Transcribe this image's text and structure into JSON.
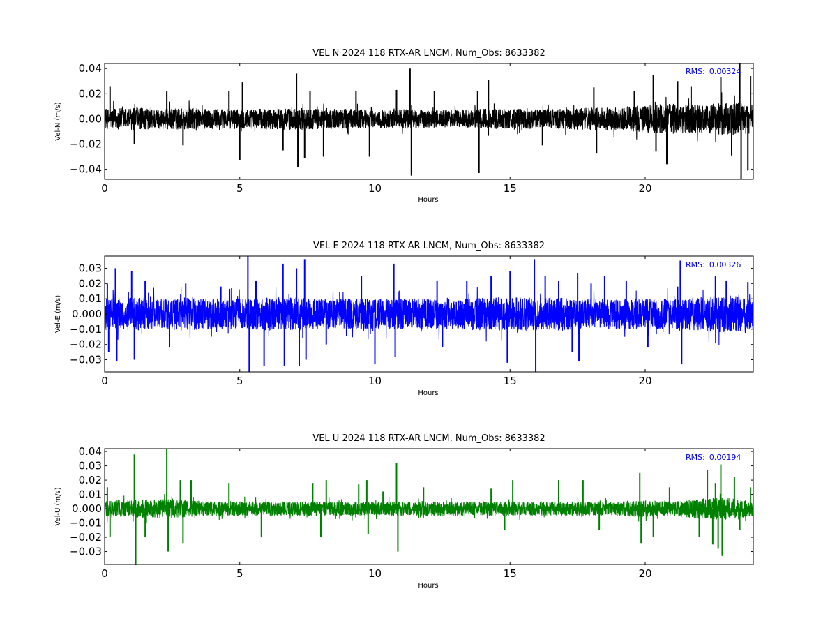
{
  "chart_data": [
    {
      "type": "line",
      "title": "VEL N 2024 118 RTX-AR  LNCM, Num_Obs: 8633382",
      "xlabel": "Hours",
      "ylabel": "Vel-N (m/s)",
      "xlim": [
        0,
        24
      ],
      "ylim": [
        -0.048,
        0.044
      ],
      "xticks": [
        0,
        5,
        10,
        15,
        20
      ],
      "xtick_labels": [
        "0",
        "5",
        "10",
        "15",
        "20"
      ],
      "yticks": [
        -0.04,
        -0.02,
        0.0,
        0.02,
        0.04
      ],
      "ytick_labels": [
        "−0.04",
        "−0.02",
        "0.00",
        "0.02",
        "0.04"
      ],
      "color": "#000000",
      "grid": false,
      "annotation": {
        "label": "RMS:",
        "value": "0.00324",
        "color": "#0000ff",
        "placement": "top-right"
      },
      "series": [
        {
          "noise_envelope": [
            [
              0,
              0.008
            ],
            [
              1,
              0.009
            ],
            [
              2,
              0.008
            ],
            [
              3,
              0.009
            ],
            [
              4,
              0.008
            ],
            [
              5,
              0.008
            ],
            [
              6,
              0.008
            ],
            [
              7,
              0.009
            ],
            [
              8,
              0.008
            ],
            [
              9,
              0.008
            ],
            [
              10,
              0.007
            ],
            [
              11,
              0.008
            ],
            [
              12,
              0.007
            ],
            [
              13,
              0.007
            ],
            [
              14,
              0.008
            ],
            [
              15,
              0.008
            ],
            [
              16,
              0.008
            ],
            [
              17,
              0.008
            ],
            [
              18,
              0.009
            ],
            [
              19,
              0.009
            ],
            [
              20,
              0.011
            ],
            [
              21,
              0.012
            ],
            [
              22,
              0.011
            ],
            [
              23,
              0.013
            ],
            [
              24,
              0.012
            ]
          ],
          "spikes": [
            [
              0.2,
              0.026
            ],
            [
              1.1,
              -0.02
            ],
            [
              2.3,
              0.022
            ],
            [
              2.9,
              -0.021
            ],
            [
              4.6,
              0.022
            ],
            [
              5.0,
              -0.033
            ],
            [
              5.1,
              0.029
            ],
            [
              6.6,
              -0.025
            ],
            [
              7.1,
              0.036
            ],
            [
              7.15,
              -0.038
            ],
            [
              7.4,
              -0.031
            ],
            [
              7.6,
              0.022
            ],
            [
              8.1,
              -0.03
            ],
            [
              9.3,
              0.022
            ],
            [
              9.8,
              -0.03
            ],
            [
              10.8,
              0.023
            ],
            [
              11.3,
              0.04
            ],
            [
              11.35,
              -0.045
            ],
            [
              12.2,
              0.022
            ],
            [
              13.8,
              0.022
            ],
            [
              13.85,
              -0.043
            ],
            [
              14.2,
              0.031
            ],
            [
              16.2,
              -0.021
            ],
            [
              18.1,
              0.025
            ],
            [
              18.2,
              -0.027
            ],
            [
              19.6,
              0.022
            ],
            [
              20.3,
              0.035
            ],
            [
              20.4,
              -0.026
            ],
            [
              20.8,
              -0.036
            ],
            [
              21.2,
              0.03
            ],
            [
              21.7,
              0.026
            ],
            [
              22.8,
              0.033
            ],
            [
              23.2,
              -0.029
            ],
            [
              23.5,
              0.044
            ],
            [
              23.55,
              -0.048
            ],
            [
              23.8,
              -0.041
            ],
            [
              23.9,
              0.034
            ]
          ]
        }
      ]
    },
    {
      "type": "line",
      "title": "VEL E 2024 118 RTX-AR  LNCM, Num_Obs: 8633382",
      "xlabel": "Hours",
      "ylabel": "Vel-E (m/s)",
      "xlim": [
        0,
        24
      ],
      "ylim": [
        -0.038,
        0.038
      ],
      "xticks": [
        0,
        5,
        10,
        15,
        20
      ],
      "xtick_labels": [
        "0",
        "5",
        "10",
        "15",
        "20"
      ],
      "yticks": [
        -0.03,
        -0.02,
        -0.01,
        0.0,
        0.01,
        0.02,
        0.03
      ],
      "ytick_labels": [
        "−0.03",
        "−0.02",
        "−0.01",
        "0.000",
        "0.01",
        "0.02",
        "0.03"
      ],
      "color": "#0000ff",
      "grid": false,
      "annotation": {
        "label": "RMS:",
        "value": "0.00326",
        "color": "#0000ff",
        "placement": "top-right"
      },
      "series": [
        {
          "noise_envelope": [
            [
              0,
              0.01
            ],
            [
              1,
              0.011
            ],
            [
              2,
              0.01
            ],
            [
              3,
              0.011
            ],
            [
              4,
              0.01
            ],
            [
              5,
              0.01
            ],
            [
              6,
              0.011
            ],
            [
              7,
              0.011
            ],
            [
              8,
              0.01
            ],
            [
              9,
              0.01
            ],
            [
              10,
              0.01
            ],
            [
              11,
              0.01
            ],
            [
              12,
              0.01
            ],
            [
              13,
              0.01
            ],
            [
              14,
              0.011
            ],
            [
              15,
              0.011
            ],
            [
              16,
              0.011
            ],
            [
              17,
              0.011
            ],
            [
              18,
              0.01
            ],
            [
              19,
              0.01
            ],
            [
              20,
              0.01
            ],
            [
              21,
              0.01
            ],
            [
              22,
              0.011
            ],
            [
              23,
              0.013
            ],
            [
              24,
              0.01
            ]
          ],
          "spikes": [
            [
              0.1,
              0.02
            ],
            [
              0.15,
              -0.025
            ],
            [
              0.4,
              0.03
            ],
            [
              0.45,
              -0.031
            ],
            [
              1.0,
              0.028
            ],
            [
              1.1,
              -0.03
            ],
            [
              1.5,
              0.022
            ],
            [
              2.4,
              -0.022
            ],
            [
              3.0,
              0.02
            ],
            [
              4.3,
              0.018
            ],
            [
              5.3,
              0.038
            ],
            [
              5.35,
              -0.038
            ],
            [
              5.6,
              0.022
            ],
            [
              5.9,
              -0.034
            ],
            [
              6.6,
              0.033
            ],
            [
              6.65,
              -0.034
            ],
            [
              7.1,
              0.03
            ],
            [
              7.2,
              -0.034
            ],
            [
              7.4,
              0.036
            ],
            [
              7.45,
              -0.03
            ],
            [
              8.2,
              -0.02
            ],
            [
              9.5,
              0.025
            ],
            [
              10.0,
              -0.033
            ],
            [
              10.7,
              0.033
            ],
            [
              10.75,
              -0.028
            ],
            [
              12.3,
              0.022
            ],
            [
              12.5,
              -0.022
            ],
            [
              13.4,
              0.022
            ],
            [
              14.3,
              0.025
            ],
            [
              14.9,
              -0.032
            ],
            [
              15.0,
              0.028
            ],
            [
              15.9,
              0.036
            ],
            [
              15.95,
              -0.038
            ],
            [
              16.3,
              0.025
            ],
            [
              16.8,
              0.022
            ],
            [
              17.3,
              -0.025
            ],
            [
              17.5,
              0.027
            ],
            [
              17.55,
              -0.031
            ],
            [
              18.0,
              0.02
            ],
            [
              18.5,
              0.025
            ],
            [
              19.3,
              0.022
            ],
            [
              20.1,
              -0.022
            ],
            [
              21.2,
              0.018
            ],
            [
              21.3,
              0.035
            ],
            [
              21.35,
              -0.033
            ],
            [
              22.6,
              0.025
            ],
            [
              23.0,
              0.022
            ],
            [
              23.8,
              0.021
            ]
          ]
        }
      ]
    },
    {
      "type": "line",
      "title": "VEL U 2024 118 RTX-AR  LNCM, Num_Obs: 8633382",
      "xlabel": "Hours",
      "ylabel": "Vel-U (m/s)",
      "xlim": [
        0,
        24
      ],
      "ylim": [
        -0.039,
        0.042
      ],
      "xticks": [
        0,
        5,
        10,
        15,
        20
      ],
      "xtick_labels": [
        "0",
        "5",
        "10",
        "15",
        "20"
      ],
      "yticks": [
        -0.03,
        -0.02,
        -0.01,
        0.0,
        0.01,
        0.02,
        0.03,
        0.04
      ],
      "ytick_labels": [
        "−0.03",
        "−0.02",
        "−0.01",
        "0.000",
        "0.01",
        "0.02",
        "0.03",
        "0.04"
      ],
      "color": "#008000",
      "grid": false,
      "annotation": {
        "label": "RMS:",
        "value": "0.00194",
        "color": "#0000ff",
        "placement": "top-right"
      },
      "series": [
        {
          "noise_envelope": [
            [
              0,
              0.006
            ],
            [
              1,
              0.006
            ],
            [
              2,
              0.007
            ],
            [
              3,
              0.006
            ],
            [
              4,
              0.005
            ],
            [
              5,
              0.005
            ],
            [
              6,
              0.005
            ],
            [
              7,
              0.005
            ],
            [
              8,
              0.005
            ],
            [
              9,
              0.005
            ],
            [
              10,
              0.005
            ],
            [
              11,
              0.005
            ],
            [
              12,
              0.005
            ],
            [
              13,
              0.005
            ],
            [
              14,
              0.005
            ],
            [
              15,
              0.005
            ],
            [
              16,
              0.005
            ],
            [
              17,
              0.005
            ],
            [
              18,
              0.005
            ],
            [
              19,
              0.005
            ],
            [
              20,
              0.006
            ],
            [
              21,
              0.005
            ],
            [
              22,
              0.007
            ],
            [
              23,
              0.008
            ],
            [
              24,
              0.005
            ]
          ],
          "spikes": [
            [
              0.1,
              0.015
            ],
            [
              0.2,
              -0.02
            ],
            [
              1.1,
              0.038
            ],
            [
              1.15,
              -0.039
            ],
            [
              1.5,
              -0.02
            ],
            [
              2.3,
              0.042
            ],
            [
              2.35,
              -0.03
            ],
            [
              2.8,
              0.02
            ],
            [
              2.9,
              -0.024
            ],
            [
              3.2,
              0.02
            ],
            [
              4.6,
              0.018
            ],
            [
              5.8,
              -0.02
            ],
            [
              7.7,
              0.018
            ],
            [
              8.0,
              -0.02
            ],
            [
              8.2,
              0.02
            ],
            [
              9.4,
              0.017
            ],
            [
              9.7,
              0.02
            ],
            [
              9.75,
              -0.018
            ],
            [
              10.3,
              0.012
            ],
            [
              10.8,
              0.032
            ],
            [
              10.85,
              -0.03
            ],
            [
              11.8,
              0.015
            ],
            [
              14.3,
              0.014
            ],
            [
              14.8,
              -0.015
            ],
            [
              15.1,
              0.02
            ],
            [
              16.8,
              0.02
            ],
            [
              17.7,
              0.02
            ],
            [
              18.3,
              -0.015
            ],
            [
              19.8,
              0.025
            ],
            [
              19.85,
              -0.024
            ],
            [
              20.3,
              -0.02
            ],
            [
              20.9,
              0.015
            ],
            [
              22.0,
              -0.02
            ],
            [
              22.3,
              0.027
            ],
            [
              22.5,
              -0.025
            ],
            [
              22.6,
              0.018
            ],
            [
              22.7,
              -0.028
            ],
            [
              22.8,
              0.031
            ],
            [
              22.85,
              -0.033
            ],
            [
              23.3,
              0.022
            ],
            [
              23.5,
              -0.015
            ],
            [
              23.9,
              0.015
            ]
          ]
        }
      ]
    }
  ]
}
